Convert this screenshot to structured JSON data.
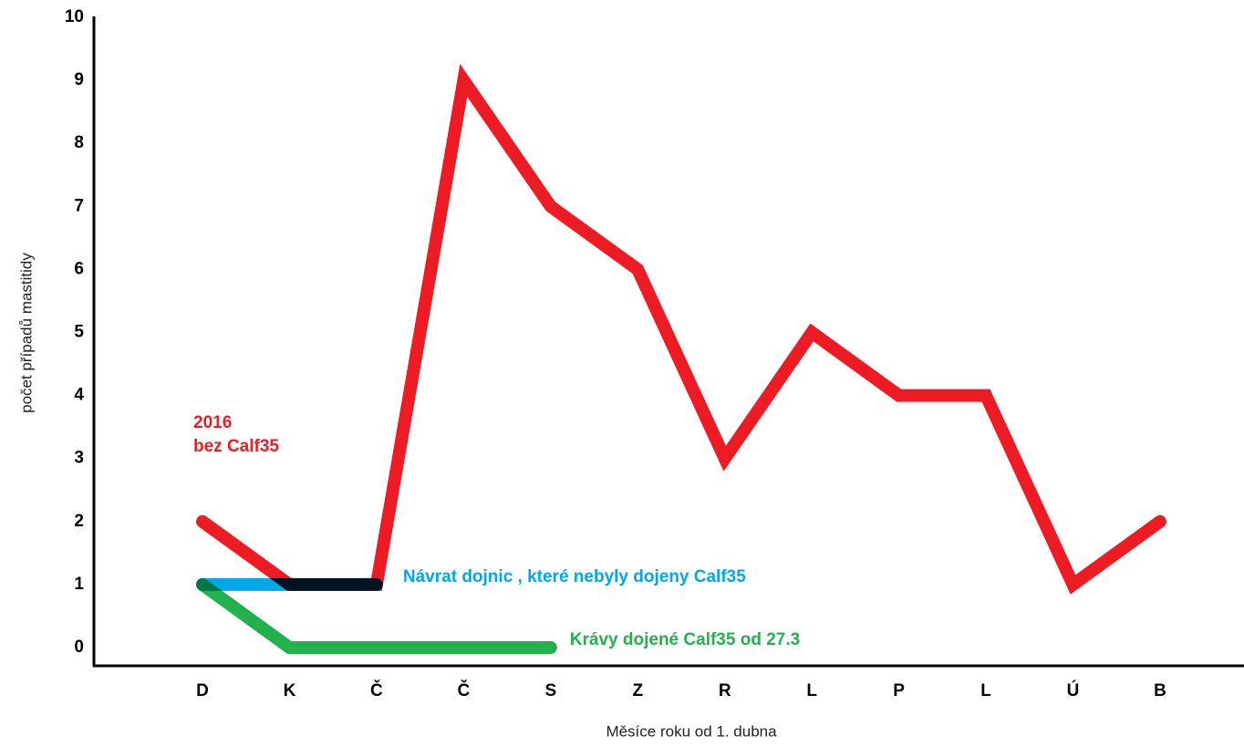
{
  "chart_data": {
    "type": "line",
    "x_label": "Měsíce roku od 1. dubna",
    "y_label": "počet případů mastitidy",
    "categories": [
      "D",
      "K",
      "Č",
      "Č",
      "S",
      "Z",
      "R",
      "L",
      "P",
      "L",
      "Ú",
      "B"
    ],
    "series": [
      {
        "name": "2016",
        "note": "bez Calf35",
        "color": "#ed1c24",
        "values": [
          2,
          1,
          1,
          9,
          7,
          6,
          3,
          5,
          4,
          4,
          1,
          2
        ]
      },
      {
        "name": "Návrat dojnic , které nebyly dojeny Calf35",
        "color": "#00a8e8",
        "values": [
          1,
          1,
          1,
          null,
          null,
          null,
          null,
          null,
          null,
          null,
          null,
          null
        ]
      },
      {
        "name": "Krávy dojené Calf35 od 27.3",
        "color": "#22b14c",
        "values": [
          1,
          0,
          0,
          0,
          0,
          null,
          null,
          null,
          null,
          null,
          null,
          null
        ]
      }
    ],
    "ylim": [
      -0.3,
      10
    ],
    "yticks": [
      0,
      1,
      2,
      3,
      4,
      5,
      6,
      7,
      8,
      9,
      10
    ]
  }
}
